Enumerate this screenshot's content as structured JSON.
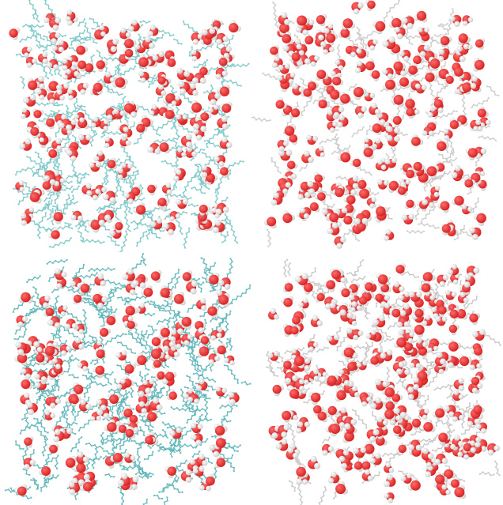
{
  "figure": {
    "panels": [
      {
        "id": "top-left",
        "bond_color": "#5fb8b8",
        "atom_color": "#8fd0d0",
        "bond_density": 1.0,
        "water_count": 190,
        "water_clustering": 0.2
      },
      {
        "id": "top-right",
        "bond_color": "#b9b9b9",
        "atom_color": "#d2d2d2",
        "bond_density": 0.45,
        "water_count": 230,
        "water_clustering": 0.2
      },
      {
        "id": "bottom-left",
        "bond_color": "#3f9fa3",
        "atom_color": "#72c2c4",
        "bond_density": 1.25,
        "water_count": 170,
        "water_clustering": 0.1
      },
      {
        "id": "bottom-right",
        "bond_color": "#b4b4b4",
        "atom_color": "#cfcfcf",
        "bond_density": 0.55,
        "water_count": 260,
        "water_clustering": 0.15
      }
    ],
    "water": {
      "oxygen_color": "#d41f1f",
      "oxygen_highlight": "#ff6b6b",
      "hydrogen_color": "#f2f2f2",
      "hydrogen_shade": "#c9c9c9"
    },
    "background": "#ffffff"
  }
}
